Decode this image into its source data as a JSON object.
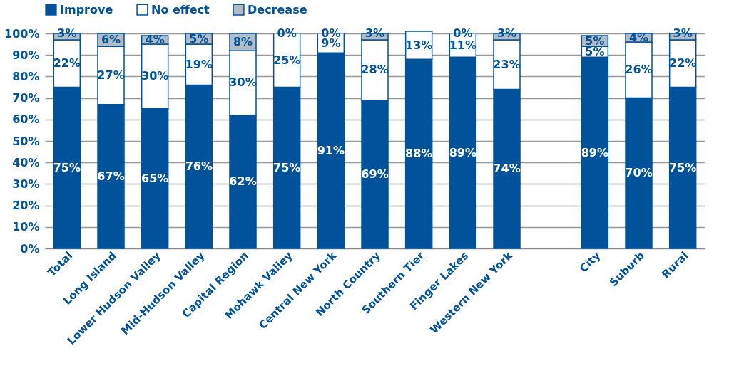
{
  "chart_data": {
    "type": "bar",
    "stacked": true,
    "categories": [
      "Total",
      "Long Island",
      "Lower Hudson Valley",
      "Mid-Hudson Valley",
      "Capital Region",
      "Mohawk Valley",
      "Central New York",
      "North Country",
      "Southern Tier",
      "Finger Lakes",
      "Western New York",
      null,
      "City",
      "Suburb",
      "Rural"
    ],
    "series": [
      {
        "name": "Improve",
        "color": "#00539b",
        "values": [
          75,
          67,
          65,
          76,
          62,
          75,
          91,
          69,
          88,
          89,
          74,
          null,
          89,
          70,
          75
        ],
        "value_labels": [
          "75%",
          "67%",
          "65%",
          "76%",
          "62%",
          "75%",
          "91%",
          "69%",
          "88%",
          "89%",
          "74%",
          null,
          "89%",
          "70%",
          "75%"
        ]
      },
      {
        "name": "No effect",
        "color": "#ffffff",
        "values": [
          22,
          27,
          30,
          19,
          30,
          25,
          9,
          28,
          13,
          11,
          23,
          null,
          5,
          26,
          22
        ],
        "value_labels": [
          "22%",
          "27%",
          "30%",
          "19%",
          "30%",
          "25%",
          "9%",
          "28%",
          "13%",
          "11%",
          "23%",
          null,
          "5%",
          "26%",
          "22%"
        ]
      },
      {
        "name": "Decrease",
        "color": "#b2bcc6",
        "values": [
          3,
          6,
          4,
          5,
          8,
          0,
          0,
          3,
          null,
          0,
          3,
          null,
          5,
          4,
          3
        ],
        "value_labels": [
          "3%",
          "6%",
          "4%",
          "5%",
          "8%",
          "0%",
          "0%",
          "3%",
          null,
          "0%",
          "3%",
          null,
          "5%",
          "4%",
          "3%"
        ]
      }
    ],
    "ylim": [
      0,
      101
    ],
    "yticks": [
      {
        "value": 0,
        "label": "0%"
      },
      {
        "value": 10,
        "label": "10%"
      },
      {
        "value": 20,
        "label": "20%"
      },
      {
        "value": 30,
        "label": "30%"
      },
      {
        "value": 40,
        "label": "40%"
      },
      {
        "value": 50,
        "label": "50%"
      },
      {
        "value": 60,
        "label": "60%"
      },
      {
        "value": 70,
        "label": "70%"
      },
      {
        "value": 80,
        "label": "80%"
      },
      {
        "value": 90,
        "label": "90%"
      },
      {
        "value": 100,
        "label": "100%"
      }
    ],
    "grid": "y",
    "legend": "top"
  }
}
